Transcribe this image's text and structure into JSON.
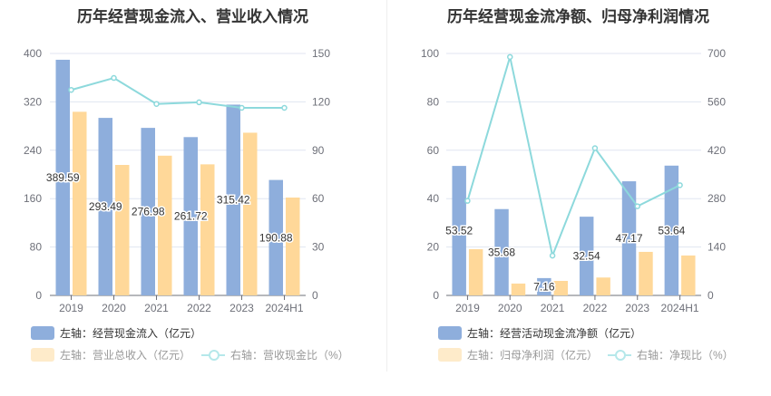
{
  "chart_data": [
    {
      "type": "bar",
      "title": "历年经营现金流入、营业收入情况",
      "categories": [
        "2019",
        "2020",
        "2021",
        "2022",
        "2023",
        "2024H1"
      ],
      "left_axis": {
        "ylim": [
          0,
          400
        ],
        "ticks": [
          "0",
          "80",
          "160",
          "240",
          "320",
          "400"
        ]
      },
      "right_axis": {
        "ylim": [
          0,
          150
        ],
        "ticks": [
          "0",
          "30",
          "60",
          "90",
          "120",
          "150"
        ]
      },
      "series": [
        {
          "name": "左轴：经营现金流入（亿元）",
          "type": "bar",
          "axis": "left",
          "color": "#8eaedc",
          "values": [
            389.59,
            293.49,
            276.98,
            261.72,
            315.42,
            190.88
          ],
          "labels": [
            "389.59",
            "293.49",
            "276.98",
            "261.72",
            "315.42",
            "190.88"
          ]
        },
        {
          "name": "左轴：营业总收入（亿元）",
          "type": "bar",
          "axis": "left",
          "color": "#ffd899",
          "values": [
            303.6,
            215.7,
            231,
            216.7,
            269,
            161.8
          ]
        },
        {
          "name": "右轴：营收现金比（%）",
          "type": "line",
          "axis": "right",
          "color": "#8dd9dc",
          "values": [
            127.4,
            134.8,
            118.7,
            119.7,
            116.3,
            116.3
          ]
        }
      ],
      "legend": "bottom"
    },
    {
      "type": "bar",
      "title": "历年经营现金流净额、归母净利润情况",
      "categories": [
        "2019",
        "2020",
        "2021",
        "2022",
        "2023",
        "2024H1"
      ],
      "left_axis": {
        "ylim": [
          0,
          100
        ],
        "ticks": [
          "0",
          "20",
          "40",
          "60",
          "80",
          "100"
        ]
      },
      "right_axis": {
        "ylim": [
          0,
          700
        ],
        "ticks": [
          "0",
          "140",
          "280",
          "420",
          "560",
          "700"
        ]
      },
      "series": [
        {
          "name": "左轴：经营活动现金流净额（亿元）",
          "type": "bar",
          "axis": "left",
          "color": "#8eaedc",
          "values": [
            53.52,
            35.68,
            7.16,
            32.54,
            47.17,
            53.64
          ],
          "labels": [
            "53.52",
            "35.68",
            "7.16",
            "32.54",
            "47.17",
            "53.64"
          ]
        },
        {
          "name": "左轴：归母净利润（亿元）",
          "type": "bar",
          "axis": "left",
          "color": "#ffd899",
          "values": [
            19.1,
            4.9,
            6.0,
            7.4,
            18.0,
            16.5
          ]
        },
        {
          "name": "右轴：净现比（%）",
          "type": "line",
          "axis": "right",
          "color": "#8dd9dc",
          "values": [
            273.5,
            690,
            115,
            426,
            258,
            319
          ]
        }
      ],
      "legend": "bottom"
    }
  ]
}
